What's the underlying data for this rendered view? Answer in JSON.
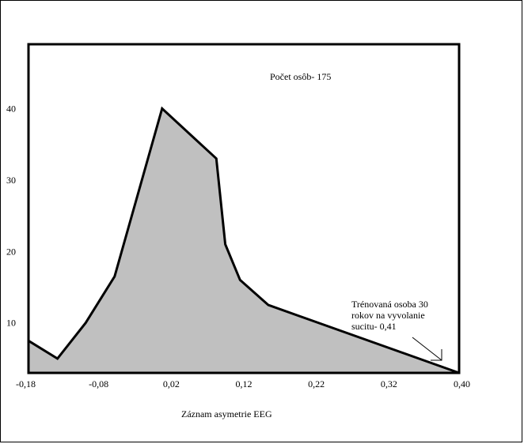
{
  "chart_data": {
    "type": "area",
    "title": "",
    "xlabel": "Záznam asymetrie EEG",
    "ylabel": "",
    "x_tick_labels": [
      "-0,18",
      "-0,08",
      "0,02",
      "0,12",
      "0,22",
      "0,32",
      "0,40"
    ],
    "y_tick_labels": [
      "10",
      "20",
      "30",
      "40"
    ],
    "xlim": [
      -0.18,
      0.4
    ],
    "ylim": [
      3,
      49
    ],
    "grid": false,
    "legend": "none",
    "series": [
      {
        "x": [
          -0.18,
          -0.141,
          -0.103,
          -0.064,
          0.0,
          0.073,
          0.085,
          0.105,
          0.143,
          0.4
        ],
        "y": [
          7.5,
          5.0,
          10.0,
          16.5,
          40.0,
          33.0,
          21.0,
          16.0,
          12.5,
          3.0
        ]
      }
    ],
    "annotations": {
      "count_label": "Počet osôb- 175",
      "note_lines": [
        "Trénovaná osoba 30",
        "rokov na vyvolanie",
        "sucitu-  0,41"
      ]
    },
    "colors": {
      "fill": "#c0c0c0",
      "line": "#000000",
      "frame": "#000000"
    }
  }
}
